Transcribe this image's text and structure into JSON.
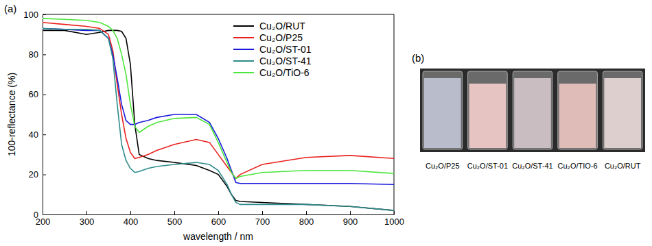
{
  "chart_data": {
    "type": "line",
    "label": "(a)",
    "x_label": "wavelength / nm",
    "y_label": "100-reflectance (%)",
    "x": [
      200,
      250,
      300,
      330,
      350,
      360,
      370,
      380,
      390,
      400,
      410,
      420,
      440,
      460,
      500,
      550,
      580,
      600,
      620,
      630,
      640,
      650,
      700,
      800,
      900,
      1000
    ],
    "series": [
      {
        "name": "Cu₂O/RUT",
        "color": "#000000",
        "values": [
          92,
          92,
          90,
          91,
          92,
          92,
          92,
          91.5,
          88,
          75,
          45,
          30,
          28,
          27,
          26,
          24.5,
          22,
          20,
          14,
          10,
          7,
          6.5,
          6,
          5,
          4,
          2
        ]
      },
      {
        "name": "Cu₂O/P25",
        "color": "#e8211e",
        "values": [
          96,
          95,
          94,
          93,
          90,
          82,
          65,
          50,
          38,
          31,
          28,
          28.5,
          30,
          32,
          35,
          37.5,
          36,
          30,
          24,
          21,
          18,
          20,
          25,
          28.5,
          29.5,
          28
        ]
      },
      {
        "name": "Cu₂O/ST-01",
        "color": "#1a1adb",
        "values": [
          93,
          92.5,
          92,
          92,
          88,
          80,
          68,
          55,
          47,
          45,
          45,
          46,
          47,
          48.5,
          50,
          50,
          46,
          38,
          28,
          22,
          16,
          15.5,
          15.5,
          15.5,
          15.5,
          15
        ]
      },
      {
        "name": "Cu₂O/ST-41",
        "color": "#2e8b8b",
        "values": [
          93,
          92.5,
          92.5,
          92,
          88,
          78,
          55,
          35,
          27,
          23,
          21,
          21.5,
          23,
          24,
          25,
          26,
          25,
          22,
          15,
          10,
          6,
          5,
          5,
          5,
          4,
          2
        ]
      },
      {
        "name": "Cu₂O/TiO-6",
        "color": "#4ce63c",
        "values": [
          98,
          97.5,
          97,
          96,
          94,
          92,
          88,
          80,
          70,
          55,
          44,
          41,
          44,
          46,
          48,
          48.5,
          45,
          36,
          26,
          21,
          18,
          19,
          21,
          22,
          22,
          20.5
        ]
      }
    ],
    "xlim": [
      200,
      1000
    ],
    "xticks": [
      200,
      300,
      400,
      500,
      600,
      700,
      800,
      900,
      1000
    ],
    "ylim": [
      0,
      100
    ],
    "yticks": [
      0,
      20,
      40,
      60,
      80,
      100
    ],
    "grid": false,
    "legend": "upper right"
  },
  "photo": {
    "label": "(b)",
    "captions": [
      "Cu₂O/P25",
      "Cu₂O/ST-01",
      "Cu₂O/ST-41",
      "Cu₂O/TIO-6",
      "Cu₂O/RUT"
    ]
  }
}
